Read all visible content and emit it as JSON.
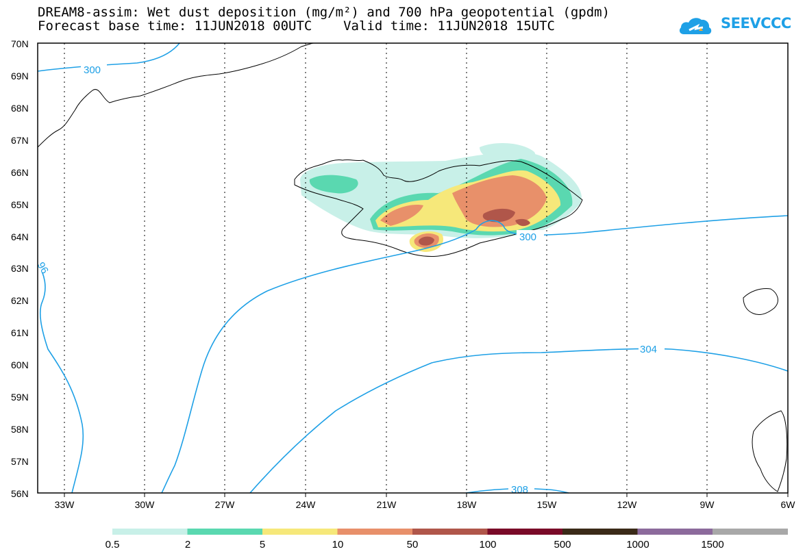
{
  "title_line1": "DREAM8-assim: Wet dust deposition (mg/m²) and 700 hPa geopotential (gpdm)",
  "title_line2": "Forecast base time: 11JUN2018 00UTC    Valid time: 11JUN2018 15UTC",
  "logo_text": "SEEVCCC",
  "lat_labels": [
    "70N",
    "69N",
    "68N",
    "67N",
    "66N",
    "65N",
    "64N",
    "63N",
    "62N",
    "61N",
    "60N",
    "59N",
    "58N",
    "57N",
    "56N"
  ],
  "lon_labels": [
    "33W",
    "30W",
    "27W",
    "24W",
    "21W",
    "18W",
    "15W",
    "12W",
    "9W",
    "6W"
  ],
  "contour_labels": [
    "300",
    "300",
    "96",
    "304",
    "308"
  ],
  "legend": {
    "labels": [
      "0.5",
      "2",
      "5",
      "10",
      "50",
      "100",
      "500",
      "1000",
      "1500"
    ],
    "colors": [
      "#c8f0e8",
      "#5ad8b0",
      "#f6e87a",
      "#e8906a",
      "#b0564a",
      "#7a0a28",
      "#3a2a18",
      "#8c6a9c",
      "#a8a8a8"
    ]
  },
  "colors": {
    "contour": "#1ea0e6",
    "coast": "#000000",
    "grid": "#000000"
  }
}
